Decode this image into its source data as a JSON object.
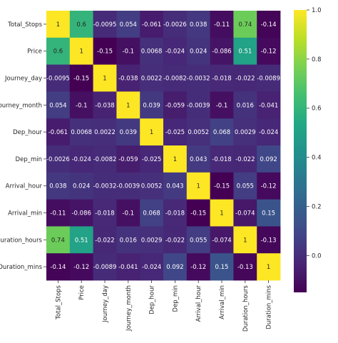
{
  "chart_data": {
    "type": "heatmap",
    "title": "",
    "xlabel": "",
    "ylabel": "",
    "row_labels": [
      "Total_Stops",
      "Price",
      "Journey_day",
      "Journey_month",
      "Dep_hour",
      "Dep_min",
      "Arrival_hour",
      "Arrival_min",
      "Duration_hours",
      "Duration_mins"
    ],
    "col_labels": [
      "Total_Stops",
      "Price",
      "Journey_day",
      "Journey_month",
      "Dep_hour",
      "Dep_min",
      "Arrival_hour",
      "Arrival_min",
      "Duration_hours",
      "Duration_mins"
    ],
    "values": [
      [
        1,
        0.6,
        -0.0095,
        0.054,
        -0.061,
        -0.0026,
        0.038,
        -0.11,
        0.74,
        -0.14
      ],
      [
        0.6,
        1,
        -0.15,
        -0.1,
        0.0068,
        -0.024,
        0.024,
        -0.086,
        0.51,
        -0.12
      ],
      [
        -0.0095,
        -0.15,
        1,
        -0.038,
        0.0022,
        -0.0082,
        -0.0032,
        -0.018,
        -0.022,
        -0.0089
      ],
      [
        0.054,
        -0.1,
        -0.038,
        1,
        0.039,
        -0.059,
        -0.0039,
        -0.1,
        0.016,
        -0.041
      ],
      [
        -0.061,
        0.0068,
        0.0022,
        0.039,
        1,
        -0.025,
        0.0052,
        0.068,
        0.0029,
        -0.024
      ],
      [
        -0.0026,
        -0.024,
        -0.0082,
        -0.059,
        -0.025,
        1,
        0.043,
        -0.018,
        -0.022,
        0.092
      ],
      [
        0.038,
        0.024,
        -0.0032,
        -0.0039,
        0.0052,
        0.043,
        1,
        -0.15,
        0.055,
        -0.12
      ],
      [
        -0.11,
        -0.086,
        -0.018,
        -0.1,
        0.068,
        -0.018,
        -0.15,
        1,
        -0.074,
        0.15
      ],
      [
        0.74,
        0.51,
        -0.022,
        0.016,
        0.0029,
        -0.022,
        0.055,
        -0.074,
        1,
        -0.13
      ],
      [
        -0.14,
        -0.12,
        -0.0089,
        -0.041,
        -0.024,
        0.092,
        -0.12,
        0.15,
        -0.13,
        1
      ]
    ],
    "colorbar": {
      "colormap": "viridis",
      "range": [
        -0.15,
        1.0
      ],
      "ticks": [
        0.0,
        0.2,
        0.4,
        0.6,
        0.8,
        1.0
      ],
      "tick_labels": [
        "0.0",
        "0.2",
        "0.4",
        "0.6",
        "0.8",
        "1.0"
      ]
    },
    "annotated": true
  }
}
